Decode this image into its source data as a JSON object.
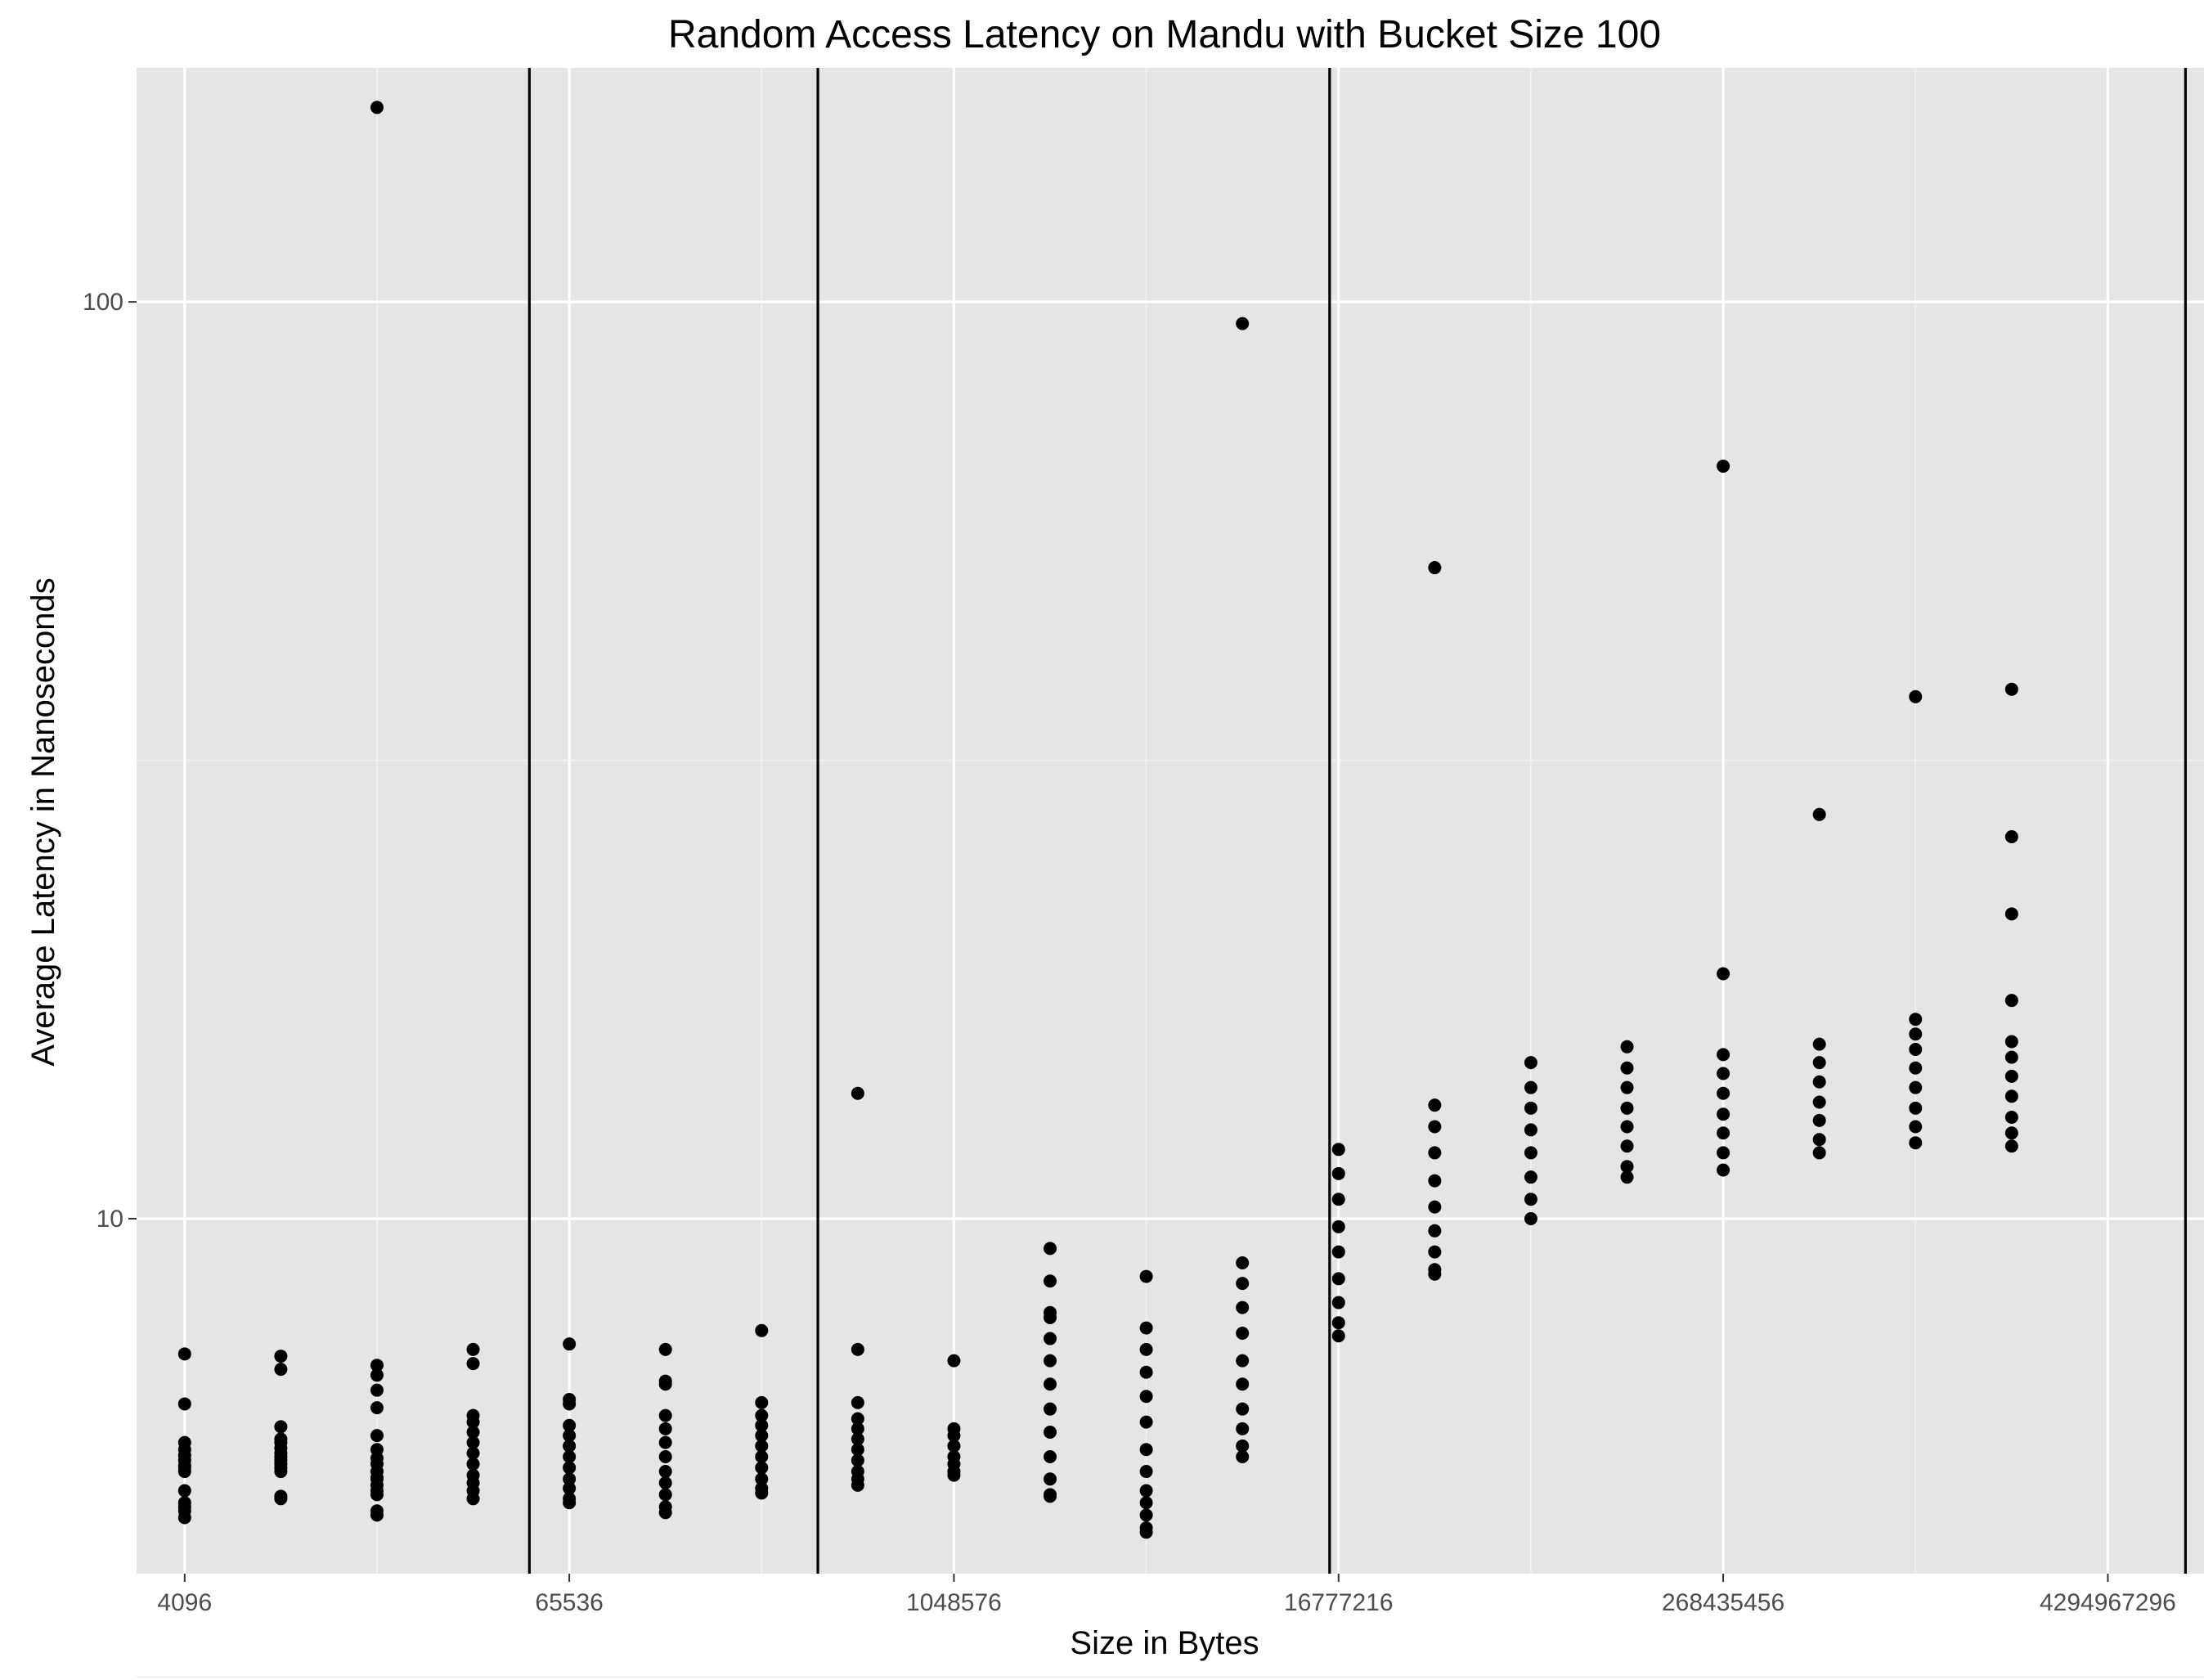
{
  "chart_data": {
    "type": "scatter",
    "title": "Random Access Latency on Mandu with Bucket Size 100",
    "xlabel": "Size in Bytes",
    "ylabel": "Average Latency in Nanoseconds",
    "x_scale": "log2",
    "y_scale": "log10",
    "xlim": [
      2896,
      8589934592
    ],
    "ylim": [
      4.1,
      180
    ],
    "x_ticks": [
      4096,
      65536,
      1048576,
      16777216,
      268435456,
      4294967296
    ],
    "x_tick_labels": [
      "4096",
      "65536",
      "1048576",
      "16777216",
      "268435456",
      "4294967296"
    ],
    "y_ticks": [
      10,
      100
    ],
    "y_tick_labels": [
      "10",
      "100"
    ],
    "grid": true,
    "vlines": [
      49152,
      393216,
      15728640,
      7516192768
    ],
    "series": [
      {
        "points": [
          {
            "x": 4096,
            "y": 5.3
          },
          {
            "x": 4096,
            "y": 5.05
          },
          {
            "x": 4096,
            "y": 5.7
          },
          {
            "x": 4096,
            "y": 6.28
          },
          {
            "x": 4096,
            "y": 7.12
          },
          {
            "x": 4096,
            "y": 5.52
          },
          {
            "x": 4096,
            "y": 5.38
          },
          {
            "x": 4096,
            "y": 5.45
          },
          {
            "x": 4096,
            "y": 5.6
          },
          {
            "x": 4096,
            "y": 5.35
          },
          {
            "x": 4096,
            "y": 4.72
          },
          {
            "x": 4096,
            "y": 4.9
          },
          {
            "x": 4096,
            "y": 4.85
          },
          {
            "x": 4096,
            "y": 4.8
          },
          {
            "x": 8192,
            "y": 5.93
          },
          {
            "x": 8192,
            "y": 7.08
          },
          {
            "x": 8192,
            "y": 6.85
          },
          {
            "x": 8192,
            "y": 4.95
          },
          {
            "x": 8192,
            "y": 4.98
          },
          {
            "x": 8192,
            "y": 5.4
          },
          {
            "x": 8192,
            "y": 5.45
          },
          {
            "x": 8192,
            "y": 5.5
          },
          {
            "x": 8192,
            "y": 5.55
          },
          {
            "x": 8192,
            "y": 5.62
          },
          {
            "x": 8192,
            "y": 5.7
          },
          {
            "x": 8192,
            "y": 5.35
          },
          {
            "x": 8192,
            "y": 5.3
          },
          {
            "x": 8192,
            "y": 5.75
          },
          {
            "x": 16384,
            "y": 163
          },
          {
            "x": 16384,
            "y": 6.92
          },
          {
            "x": 16384,
            "y": 6.75
          },
          {
            "x": 16384,
            "y": 6.5
          },
          {
            "x": 16384,
            "y": 6.22
          },
          {
            "x": 16384,
            "y": 5.8
          },
          {
            "x": 16384,
            "y": 5.6
          },
          {
            "x": 16384,
            "y": 4.8
          },
          {
            "x": 16384,
            "y": 4.75
          },
          {
            "x": 16384,
            "y": 5.12
          },
          {
            "x": 16384,
            "y": 5.05
          },
          {
            "x": 16384,
            "y": 5.0
          },
          {
            "x": 16384,
            "y": 5.22
          },
          {
            "x": 16384,
            "y": 5.3
          },
          {
            "x": 16384,
            "y": 5.4
          },
          {
            "x": 16384,
            "y": 5.48
          },
          {
            "x": 16384,
            "y": 5.2
          },
          {
            "x": 32768,
            "y": 7.2
          },
          {
            "x": 32768,
            "y": 6.95
          },
          {
            "x": 32768,
            "y": 6.1
          },
          {
            "x": 32768,
            "y": 6.0
          },
          {
            "x": 32768,
            "y": 5.85
          },
          {
            "x": 32768,
            "y": 5.7
          },
          {
            "x": 32768,
            "y": 5.55
          },
          {
            "x": 32768,
            "y": 5.4
          },
          {
            "x": 32768,
            "y": 5.25
          },
          {
            "x": 32768,
            "y": 5.15
          },
          {
            "x": 32768,
            "y": 5.05
          },
          {
            "x": 32768,
            "y": 4.95
          },
          {
            "x": 65536,
            "y": 7.3
          },
          {
            "x": 65536,
            "y": 6.35
          },
          {
            "x": 65536,
            "y": 6.28
          },
          {
            "x": 65536,
            "y": 5.95
          },
          {
            "x": 65536,
            "y": 5.8
          },
          {
            "x": 65536,
            "y": 5.65
          },
          {
            "x": 65536,
            "y": 5.5
          },
          {
            "x": 65536,
            "y": 5.35
          },
          {
            "x": 65536,
            "y": 5.2
          },
          {
            "x": 65536,
            "y": 5.08
          },
          {
            "x": 65536,
            "y": 4.95
          },
          {
            "x": 65536,
            "y": 4.9
          },
          {
            "x": 131072,
            "y": 7.2
          },
          {
            "x": 131072,
            "y": 6.65
          },
          {
            "x": 131072,
            "y": 6.6
          },
          {
            "x": 131072,
            "y": 6.1
          },
          {
            "x": 131072,
            "y": 5.9
          },
          {
            "x": 131072,
            "y": 5.7
          },
          {
            "x": 131072,
            "y": 5.5
          },
          {
            "x": 131072,
            "y": 5.3
          },
          {
            "x": 131072,
            "y": 5.15
          },
          {
            "x": 131072,
            "y": 5.0
          },
          {
            "x": 131072,
            "y": 4.85
          },
          {
            "x": 131072,
            "y": 4.78
          },
          {
            "x": 262144,
            "y": 7.55
          },
          {
            "x": 262144,
            "y": 6.3
          },
          {
            "x": 262144,
            "y": 6.1
          },
          {
            "x": 262144,
            "y": 5.95
          },
          {
            "x": 262144,
            "y": 5.8
          },
          {
            "x": 262144,
            "y": 5.65
          },
          {
            "x": 262144,
            "y": 5.5
          },
          {
            "x": 262144,
            "y": 5.35
          },
          {
            "x": 262144,
            "y": 5.2
          },
          {
            "x": 262144,
            "y": 5.08
          },
          {
            "x": 262144,
            "y": 5.02
          },
          {
            "x": 524288,
            "y": 13.7
          },
          {
            "x": 524288,
            "y": 7.2
          },
          {
            "x": 524288,
            "y": 6.3
          },
          {
            "x": 524288,
            "y": 6.05
          },
          {
            "x": 524288,
            "y": 5.9
          },
          {
            "x": 524288,
            "y": 5.75
          },
          {
            "x": 524288,
            "y": 5.6
          },
          {
            "x": 524288,
            "y": 5.45
          },
          {
            "x": 524288,
            "y": 5.3
          },
          {
            "x": 524288,
            "y": 5.2
          },
          {
            "x": 524288,
            "y": 5.12
          },
          {
            "x": 1048576,
            "y": 7.0
          },
          {
            "x": 1048576,
            "y": 5.9
          },
          {
            "x": 1048576,
            "y": 5.8
          },
          {
            "x": 1048576,
            "y": 5.65
          },
          {
            "x": 1048576,
            "y": 5.5
          },
          {
            "x": 1048576,
            "y": 5.4
          },
          {
            "x": 1048576,
            "y": 5.3
          },
          {
            "x": 1048576,
            "y": 5.25
          },
          {
            "x": 2097152,
            "y": 9.28
          },
          {
            "x": 2097152,
            "y": 8.55
          },
          {
            "x": 2097152,
            "y": 7.9
          },
          {
            "x": 2097152,
            "y": 7.8
          },
          {
            "x": 2097152,
            "y": 7.4
          },
          {
            "x": 2097152,
            "y": 7.0
          },
          {
            "x": 2097152,
            "y": 6.6
          },
          {
            "x": 2097152,
            "y": 6.2
          },
          {
            "x": 2097152,
            "y": 5.85
          },
          {
            "x": 2097152,
            "y": 5.5
          },
          {
            "x": 2097152,
            "y": 5.2
          },
          {
            "x": 2097152,
            "y": 5.0
          },
          {
            "x": 2097152,
            "y": 4.98
          },
          {
            "x": 4194304,
            "y": 8.65
          },
          {
            "x": 4194304,
            "y": 7.6
          },
          {
            "x": 4194304,
            "y": 7.2
          },
          {
            "x": 4194304,
            "y": 6.8
          },
          {
            "x": 4194304,
            "y": 6.4
          },
          {
            "x": 4194304,
            "y": 6.0
          },
          {
            "x": 4194304,
            "y": 5.6
          },
          {
            "x": 4194304,
            "y": 5.3
          },
          {
            "x": 4194304,
            "y": 5.05
          },
          {
            "x": 4194304,
            "y": 4.9
          },
          {
            "x": 4194304,
            "y": 4.75
          },
          {
            "x": 4194304,
            "y": 4.6
          },
          {
            "x": 4194304,
            "y": 4.55
          },
          {
            "x": 8388608,
            "y": 94.7
          },
          {
            "x": 8388608,
            "y": 8.95
          },
          {
            "x": 8388608,
            "y": 8.5
          },
          {
            "x": 8388608,
            "y": 8.0
          },
          {
            "x": 8388608,
            "y": 7.5
          },
          {
            "x": 8388608,
            "y": 7.0
          },
          {
            "x": 8388608,
            "y": 6.6
          },
          {
            "x": 8388608,
            "y": 6.2
          },
          {
            "x": 8388608,
            "y": 5.9
          },
          {
            "x": 8388608,
            "y": 5.65
          },
          {
            "x": 8388608,
            "y": 5.5
          },
          {
            "x": 16777216,
            "y": 11.9
          },
          {
            "x": 16777216,
            "y": 11.2
          },
          {
            "x": 16777216,
            "y": 10.5
          },
          {
            "x": 16777216,
            "y": 9.8
          },
          {
            "x": 16777216,
            "y": 9.2
          },
          {
            "x": 16777216,
            "y": 8.6
          },
          {
            "x": 16777216,
            "y": 8.1
          },
          {
            "x": 16777216,
            "y": 7.7
          },
          {
            "x": 16777216,
            "y": 7.45
          },
          {
            "x": 33554432,
            "y": 51.3
          },
          {
            "x": 33554432,
            "y": 13.3
          },
          {
            "x": 33554432,
            "y": 12.6
          },
          {
            "x": 33554432,
            "y": 11.8
          },
          {
            "x": 33554432,
            "y": 11.0
          },
          {
            "x": 33554432,
            "y": 10.3
          },
          {
            "x": 33554432,
            "y": 9.7
          },
          {
            "x": 33554432,
            "y": 9.2
          },
          {
            "x": 33554432,
            "y": 8.8
          },
          {
            "x": 33554432,
            "y": 8.7
          },
          {
            "x": 67108864,
            "y": 14.8
          },
          {
            "x": 67108864,
            "y": 13.9
          },
          {
            "x": 67108864,
            "y": 13.2
          },
          {
            "x": 67108864,
            "y": 12.5
          },
          {
            "x": 67108864,
            "y": 11.8
          },
          {
            "x": 67108864,
            "y": 11.1
          },
          {
            "x": 67108864,
            "y": 10.5
          },
          {
            "x": 67108864,
            "y": 10.0
          },
          {
            "x": 134217728,
            "y": 15.4
          },
          {
            "x": 134217728,
            "y": 14.6
          },
          {
            "x": 134217728,
            "y": 13.9
          },
          {
            "x": 134217728,
            "y": 13.2
          },
          {
            "x": 134217728,
            "y": 12.6
          },
          {
            "x": 134217728,
            "y": 12.0
          },
          {
            "x": 134217728,
            "y": 11.4
          },
          {
            "x": 134217728,
            "y": 11.1
          },
          {
            "x": 268435456,
            "y": 66.2
          },
          {
            "x": 268435456,
            "y": 18.5
          },
          {
            "x": 268435456,
            "y": 15.1
          },
          {
            "x": 268435456,
            "y": 14.4
          },
          {
            "x": 268435456,
            "y": 13.7
          },
          {
            "x": 268435456,
            "y": 13.0
          },
          {
            "x": 268435456,
            "y": 12.4
          },
          {
            "x": 268435456,
            "y": 11.8
          },
          {
            "x": 268435456,
            "y": 11.3
          },
          {
            "x": 536870912,
            "y": 27.6
          },
          {
            "x": 536870912,
            "y": 15.5
          },
          {
            "x": 536870912,
            "y": 14.8
          },
          {
            "x": 536870912,
            "y": 14.1
          },
          {
            "x": 536870912,
            "y": 13.4
          },
          {
            "x": 536870912,
            "y": 12.8
          },
          {
            "x": 536870912,
            "y": 12.2
          },
          {
            "x": 536870912,
            "y": 11.8
          },
          {
            "x": 1073741824,
            "y": 37.1
          },
          {
            "x": 1073741824,
            "y": 16.5
          },
          {
            "x": 1073741824,
            "y": 15.9
          },
          {
            "x": 1073741824,
            "y": 15.3
          },
          {
            "x": 1073741824,
            "y": 14.6
          },
          {
            "x": 1073741824,
            "y": 13.9
          },
          {
            "x": 1073741824,
            "y": 13.2
          },
          {
            "x": 1073741824,
            "y": 12.6
          },
          {
            "x": 1073741824,
            "y": 12.1
          },
          {
            "x": 2147483648,
            "y": 37.8
          },
          {
            "x": 2147483648,
            "y": 26.1
          },
          {
            "x": 2147483648,
            "y": 21.5
          },
          {
            "x": 2147483648,
            "y": 17.3
          },
          {
            "x": 2147483648,
            "y": 15.6
          },
          {
            "x": 2147483648,
            "y": 15.0
          },
          {
            "x": 2147483648,
            "y": 14.3
          },
          {
            "x": 2147483648,
            "y": 13.6
          },
          {
            "x": 2147483648,
            "y": 12.9
          },
          {
            "x": 2147483648,
            "y": 12.4
          },
          {
            "x": 2147483648,
            "y": 12.0
          }
        ]
      }
    ]
  }
}
